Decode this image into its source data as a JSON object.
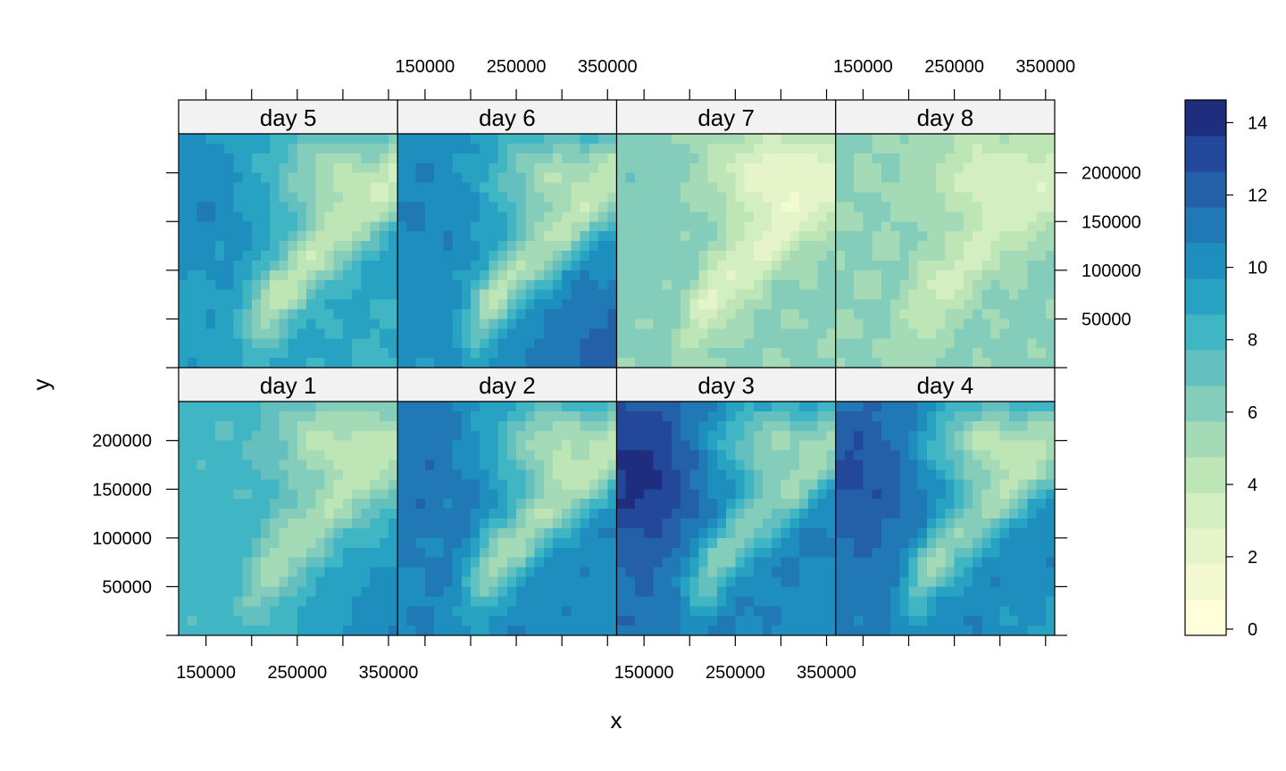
{
  "chart_data": {
    "type": "heatmap",
    "title": "",
    "xlabel": "x",
    "ylabel": "y",
    "layout": {
      "columns": 4,
      "rows": 2
    },
    "xlim": [
      120000,
      360000
    ],
    "ylim": [
      0,
      240000
    ],
    "x_ticks": [
      150000,
      200000,
      250000,
      300000,
      350000
    ],
    "x_tick_labels": [
      "150000",
      "",
      "250000",
      "",
      "350000"
    ],
    "y_ticks": [
      50000,
      100000,
      150000,
      200000
    ],
    "y_tick_labels": [
      "50000",
      "100000",
      "150000",
      "200000"
    ],
    "colorbar": {
      "min": 0,
      "max": 14.8,
      "ticks": [
        0,
        2,
        4,
        6,
        8,
        10,
        12,
        14
      ],
      "tick_labels": [
        "0",
        "2",
        "4",
        "6",
        "8",
        "10",
        "12",
        "14"
      ],
      "levels": 15,
      "colors": [
        "#ffffd9",
        "#f3fad1",
        "#e6f5c9",
        "#d3eec0",
        "#bde5b5",
        "#a4dab6",
        "#84cdbb",
        "#63c0be",
        "#40b5c3",
        "#27a2c2",
        "#1d8ebd",
        "#2079b4",
        "#2360a8",
        "#23479b",
        "#1f2d7e"
      ]
    },
    "panels": [
      {
        "label": "day 5",
        "row": 0,
        "col": 0,
        "base": 9.5,
        "ne": 5.0,
        "ridge": 3.8,
        "se": 8.6,
        "nw": 1.2
      },
      {
        "label": "day 6",
        "row": 0,
        "col": 1,
        "base": 10.2,
        "ne": 5.2,
        "ridge": 4.2,
        "se": 12.5,
        "nw": 0.6
      },
      {
        "label": "day 7",
        "row": 0,
        "col": 2,
        "base": 6.2,
        "ne": 2.2,
        "ridge": 2.6,
        "se": 6.0,
        "nw": 0.4
      },
      {
        "label": "day 8",
        "row": 0,
        "col": 3,
        "base": 6.0,
        "ne": 3.3,
        "ridge": 3.4,
        "se": 6.3,
        "nw": 0.0
      },
      {
        "label": "day 1",
        "row": 1,
        "col": 0,
        "base": 8.3,
        "ne": 4.6,
        "ridge": 4.6,
        "se": 11.0,
        "nw": 0.0
      },
      {
        "label": "day 2",
        "row": 1,
        "col": 1,
        "base": 10.8,
        "ne": 5.0,
        "ridge": 4.8,
        "se": 10.3,
        "nw": 0.8
      },
      {
        "label": "day 3",
        "row": 1,
        "col": 2,
        "base": 11.5,
        "ne": 6.0,
        "ridge": 6.0,
        "se": 10.0,
        "nw": 2.8
      },
      {
        "label": "day 4",
        "row": 1,
        "col": 3,
        "base": 11.2,
        "ne": 4.6,
        "ridge": 5.5,
        "se": 9.6,
        "nw": 1.8
      }
    ]
  }
}
